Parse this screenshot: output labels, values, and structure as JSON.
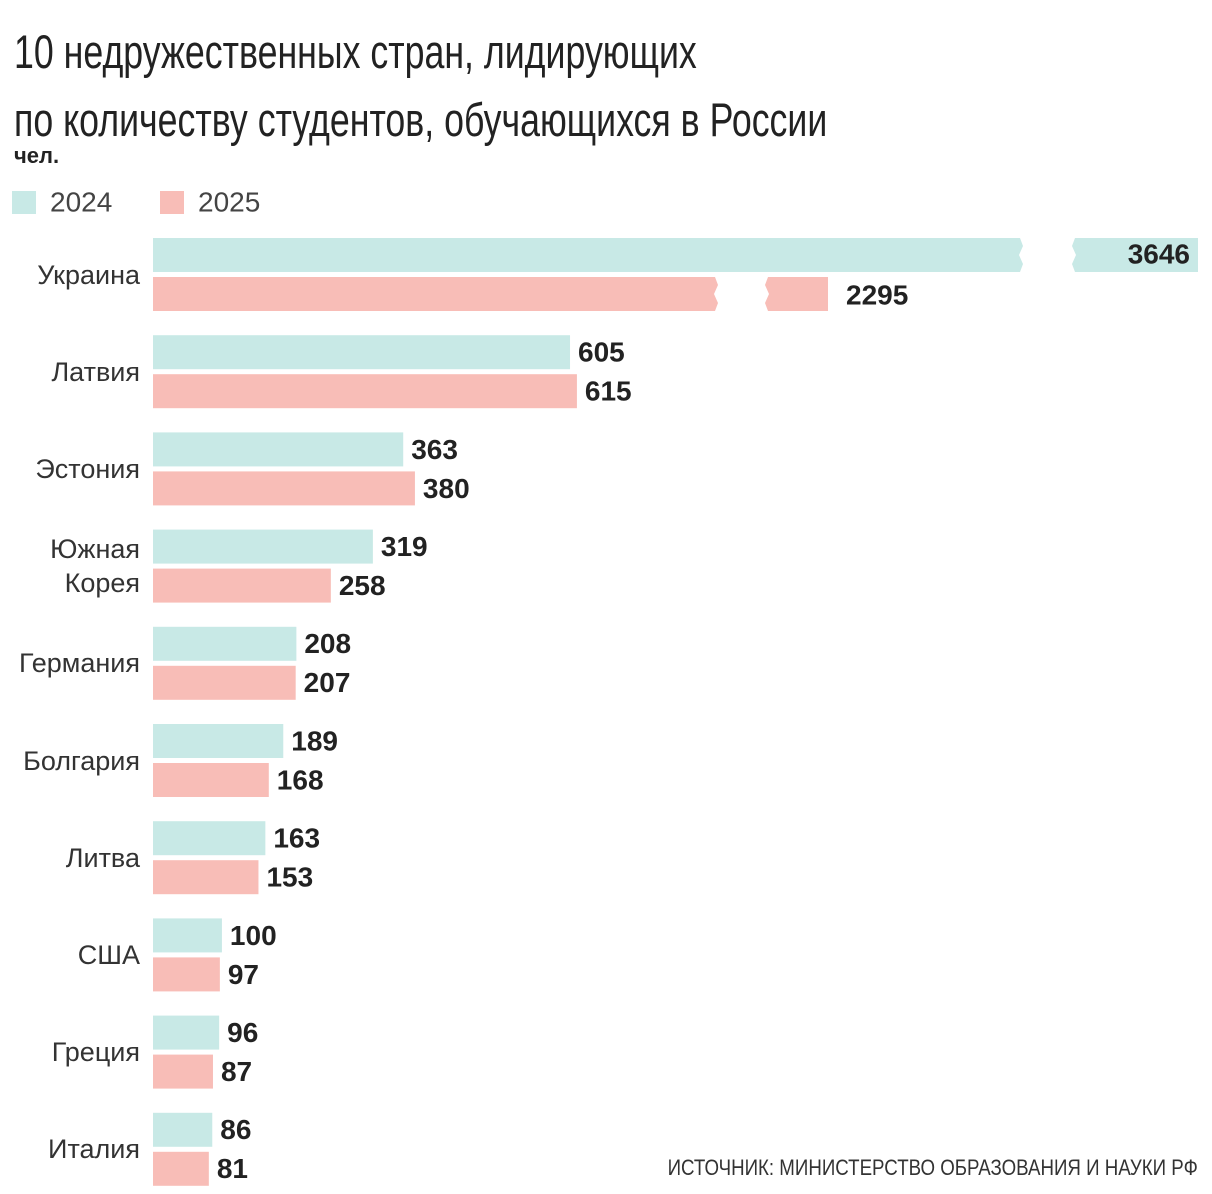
{
  "chart_data": {
    "type": "bar",
    "orientation": "horizontal",
    "title": "10 недружественных стран, лидирующих\nпо количеству студентов, обучающихся в России",
    "unit": "чел.",
    "source": "ИСТОЧНИК: МИНИСТЕРСТВО ОБРАЗОВАНИЯ И НАУКИ РФ",
    "categories": [
      "Украина",
      "Латвия",
      "Эстония",
      "Южная\nКорея",
      "Германия",
      "Болгария",
      "Литва",
      "США",
      "Греция",
      "Италия"
    ],
    "series": [
      {
        "name": "2024",
        "color": "#c8e9e6",
        "values": [
          3646,
          605,
          363,
          319,
          208,
          189,
          163,
          100,
          96,
          86
        ]
      },
      {
        "name": "2025",
        "color": "#f8bdb7",
        "values": [
          2295,
          615,
          380,
          258,
          207,
          168,
          153,
          97,
          87,
          81
        ]
      }
    ]
  }
}
